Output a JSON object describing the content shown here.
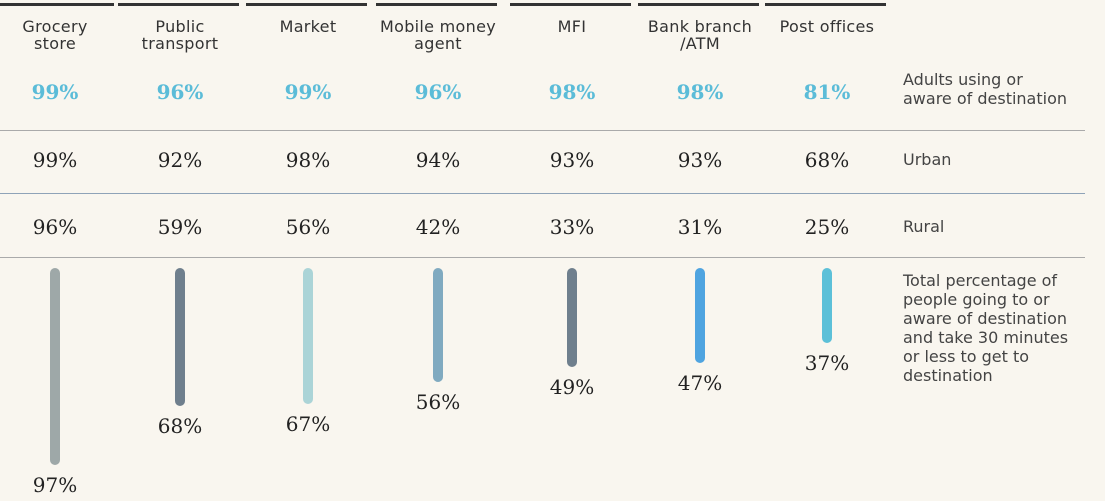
{
  "columns": [
    "Grocery\nstore",
    "Public\ntransport",
    "Market",
    "Mobile money\nagent",
    "MFI",
    "Bank branch\n/ATM",
    "Post offices"
  ],
  "rows": [
    {
      "label": "Adults using or\naware of destination",
      "values": [
        "99%",
        "96%",
        "99%",
        "96%",
        "98%",
        "98%",
        "81%"
      ]
    },
    {
      "label": "Urban",
      "values": [
        "99%",
        "92%",
        "98%",
        "94%",
        "93%",
        "93%",
        "68%"
      ]
    },
    {
      "label": "Rural",
      "values": [
        "96%",
        "59%",
        "56%",
        "42%",
        "33%",
        "31%",
        "25%"
      ]
    }
  ],
  "bars": {
    "label": "Total percentage of\npeople going to or\naware of destination\nand take 30 minutes\nor less to get to\ndestination",
    "values": [
      97,
      68,
      67,
      56,
      49,
      47,
      37
    ],
    "value_labels": [
      "97%",
      "68%",
      "67%",
      "56%",
      "49%",
      "47%",
      "37%"
    ],
    "colors": [
      "#9ea8a8",
      "#6f7f8d",
      "#abd4d7",
      "#80aac0",
      "#6f7f8d",
      "#4fa4e0",
      "#5cc0d8"
    ]
  }
}
